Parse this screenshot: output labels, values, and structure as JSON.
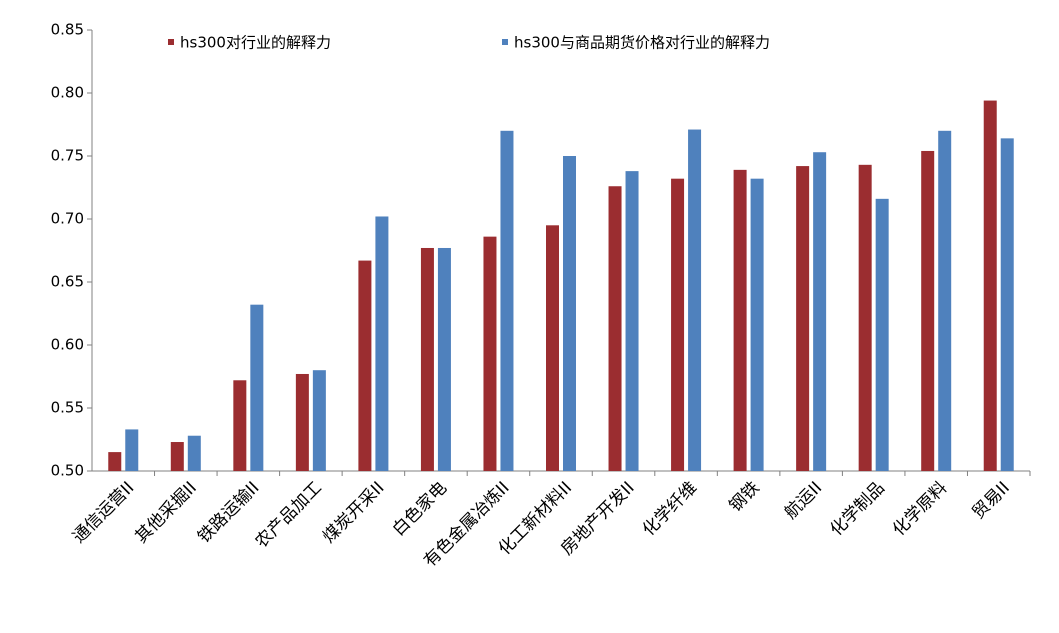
{
  "chart_data": {
    "type": "bar",
    "categories": [
      "通信运营II",
      "其他采掘II",
      "铁路运输II",
      "农产品加工",
      "煤炭开采II",
      "白色家电",
      "有色金属冶炼II",
      "化工新材料II",
      "房地产开发II",
      "化学纤维",
      "钢铁",
      "航运II",
      "化学制品",
      "化学原料",
      "贸易II"
    ],
    "series": [
      {
        "name": "hs300对行业的解释力",
        "color": "#9b2d30",
        "values": [
          0.515,
          0.523,
          0.572,
          0.577,
          0.667,
          0.677,
          0.686,
          0.695,
          0.726,
          0.732,
          0.739,
          0.742,
          0.743,
          0.754,
          0.794
        ]
      },
      {
        "name": "hs300与商品期货价格对行业的解释力",
        "color": "#4f81bd",
        "values": [
          0.533,
          0.528,
          0.632,
          0.58,
          0.702,
          0.677,
          0.77,
          0.75,
          0.738,
          0.771,
          0.732,
          0.753,
          0.716,
          0.77,
          0.764
        ]
      }
    ],
    "ylim": [
      0.5,
      0.85
    ],
    "yticks": [
      {
        "value": 0.5,
        "label": "0.50"
      },
      0.55,
      {
        "value": 0.6,
        "label": "0.60"
      },
      0.65,
      {
        "value": 0.7,
        "label": "0.70"
      },
      0.75,
      {
        "value": 0.8,
        "label": "0.80"
      },
      0.85
    ],
    "grid": false,
    "legend": "top"
  }
}
